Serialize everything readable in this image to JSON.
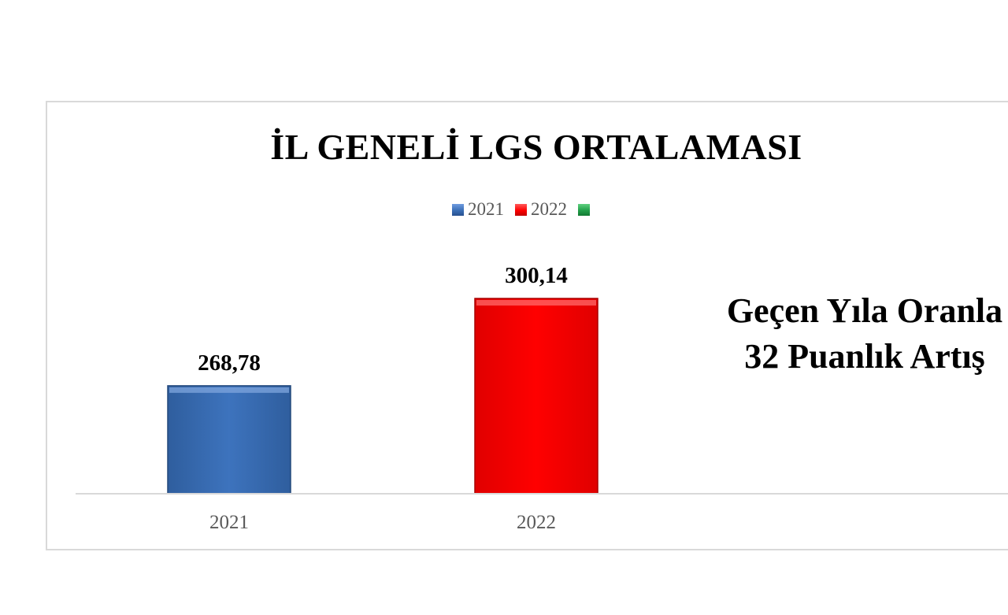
{
  "chart_data": {
    "type": "bar",
    "title": "İL GENELİ LGS ORTALAMASI",
    "categories": [
      "2021",
      "2022"
    ],
    "values": [
      268.78,
      300.14
    ],
    "value_labels": [
      "268,78",
      "300,14"
    ],
    "series_colors": [
      "#3a6db3",
      "#ff0000"
    ],
    "legend": {
      "position": "top",
      "entries": [
        {
          "label": "2021",
          "color": "#3b6fb6"
        },
        {
          "label": "2022",
          "color": "#ff0000"
        },
        {
          "label": "",
          "color": "#22a04a"
        }
      ]
    },
    "annotation_lines": [
      "Geçen Yıla Oranla",
      "32 Puanlık Artış"
    ],
    "ylim": [
      230,
      330
    ],
    "grid": false,
    "xlabel": "",
    "ylabel": ""
  }
}
